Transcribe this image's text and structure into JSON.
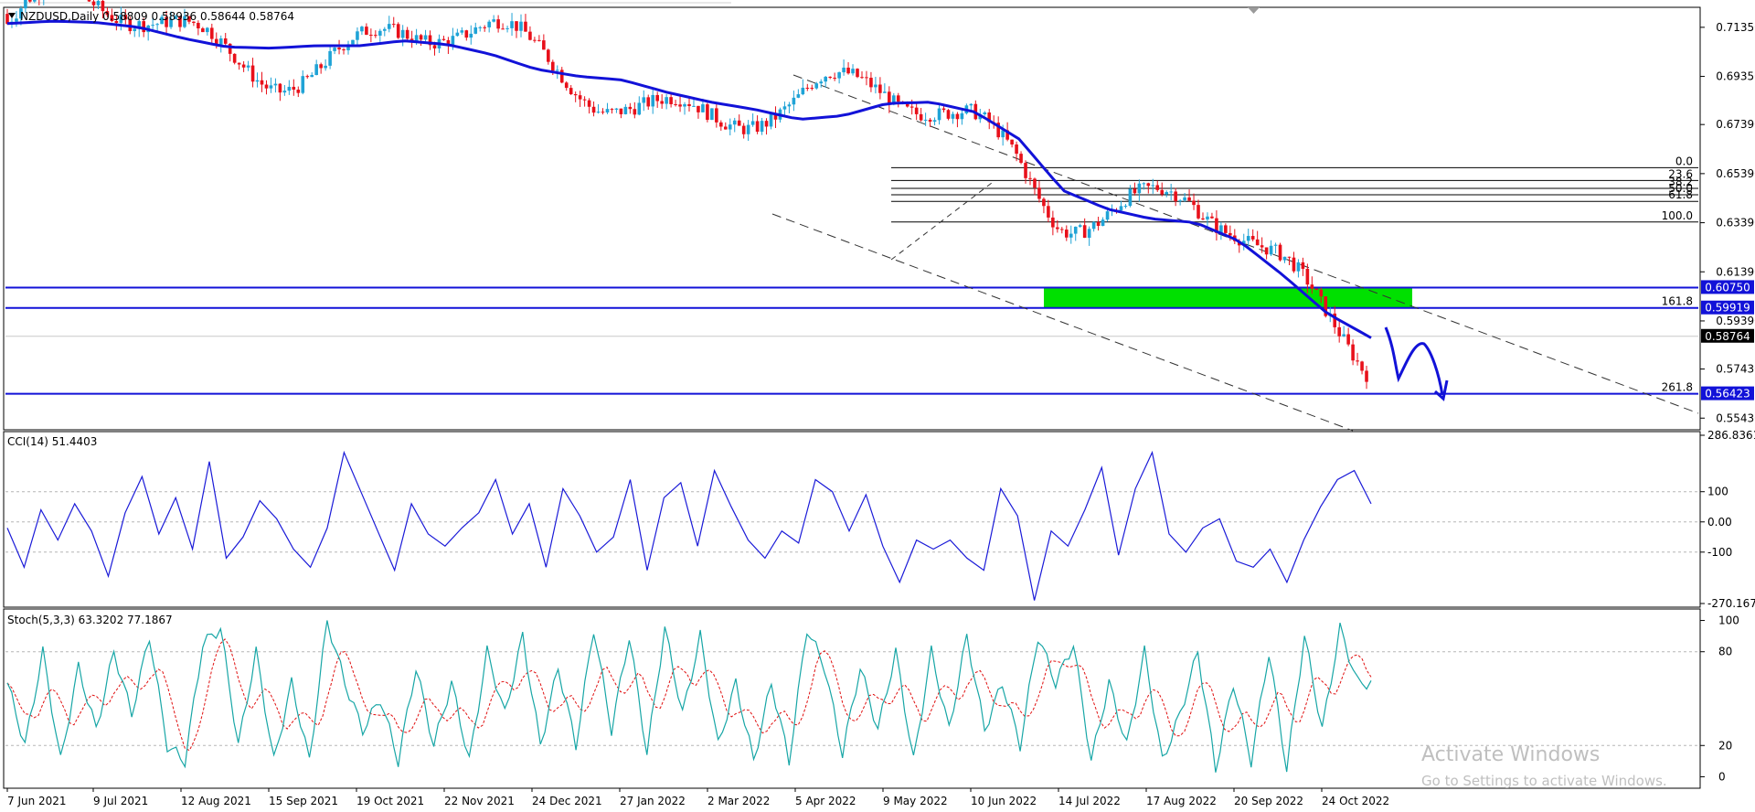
{
  "symbol_header": "NZDUSD,Daily  0.58809 0.58936 0.58644 0.58764",
  "dropdown_icon": "triangle-down-icon",
  "watermark": {
    "title": "Activate Windows",
    "subtitle": "Go to Settings to activate Windows."
  },
  "colors": {
    "bull": "#1fa3d6",
    "bear": "#e8101a",
    "ma": "#1212d8",
    "fib_zone": "#00e000",
    "level": "#1212d8",
    "cci": "#1a1ad8",
    "stoch_main": "#17a6a6",
    "stoch_signal": "#e01010"
  },
  "chart_data": [
    {
      "type": "candlestick",
      "name": "price-chart",
      "title": "NZDUSD,Daily",
      "ohlc_last": {
        "open": 0.58809,
        "high": 0.58936,
        "low": 0.58644,
        "close": 0.58764
      },
      "ylim": [
        0.5503,
        0.7209
      ],
      "y_ticks": [
        "0.71350",
        "0.69350",
        "0.67390",
        "0.65390",
        "0.63390",
        "0.61390",
        "0.59390",
        "0.57430",
        "0.55430"
      ],
      "x_ticks": [
        "7 Jun 2021",
        "9 Jul 2021",
        "12 Aug 2021",
        "15 Sep 2021",
        "19 Oct 2021",
        "22 Nov 2021",
        "24 Dec 2021",
        "27 Jan 2022",
        "2 Mar 2022",
        "5 Apr 2022",
        "9 May 2022",
        "10 Jun 2022",
        "14 Jul 2022",
        "17 Aug 2022",
        "20 Sep 2022",
        "24 Oct 2022"
      ],
      "price_levels": [
        {
          "label": "0.60750",
          "value": 0.6075
        },
        {
          "label": "0.59919",
          "value": 0.59919
        },
        {
          "label": "0.56423",
          "value": 0.56423
        }
      ],
      "current_price": {
        "label": "0.58764",
        "value": 0.58764
      },
      "fibonacci": [
        {
          "label": "0.0",
          "value": 0.6563
        },
        {
          "label": "23.6",
          "value": 0.6511
        },
        {
          "label": "38.2",
          "value": 0.6479
        },
        {
          "label": "50.0",
          "value": 0.6453
        },
        {
          "label": "61.8",
          "value": 0.6426
        },
        {
          "label": "100.0",
          "value": 0.6342
        },
        {
          "label": "161.8",
          "value": 0.5992
        },
        {
          "label": "261.8",
          "value": 0.5642
        }
      ],
      "ma_series": [
        0.715,
        0.716,
        0.7155,
        0.7135,
        0.709,
        0.7055,
        0.705,
        0.706,
        0.706,
        0.708,
        0.7065,
        0.7025,
        0.6965,
        0.6935,
        0.692,
        0.687,
        0.683,
        0.68,
        0.676,
        0.6775,
        0.6825,
        0.683,
        0.679,
        0.668,
        0.647,
        0.6395,
        0.6355,
        0.634,
        0.6265,
        0.6125,
        0.597,
        0.587
      ]
    },
    {
      "type": "line",
      "name": "cci",
      "title": "CCI(14) 51.4403",
      "ylim": [
        -270.1672,
        286.8361
      ],
      "y_ticks": [
        "286.8361",
        "100",
        "0.00",
        "-100",
        "-270.1672"
      ],
      "series": [
        {
          "values": [
            -20,
            -150,
            40,
            -60,
            60,
            -30,
            -180,
            30,
            150,
            -40,
            80,
            -90,
            200,
            -120,
            -50,
            70,
            10,
            -90,
            -150,
            -20,
            230,
            100,
            -30,
            -160,
            60,
            -40,
            -80,
            -20,
            30,
            140,
            -40,
            60,
            -150,
            110,
            20,
            -100,
            -50,
            140,
            -160,
            80,
            130,
            -80,
            170,
            50,
            -60,
            -120,
            -30,
            -70,
            140,
            100,
            -30,
            90,
            -80,
            -200,
            -60,
            -90,
            -60,
            -120,
            -160,
            110,
            20,
            -260,
            -30,
            -80,
            40,
            180,
            -110,
            110,
            230,
            -40,
            -100,
            -20,
            10,
            -130,
            -150,
            -90,
            -200,
            -60,
            50,
            140,
            170,
            60
          ]
        }
      ]
    },
    {
      "type": "line",
      "name": "stochastic",
      "title": "Stoch(5,3,3) 63.3202 77.1867",
      "ylim": [
        -5,
        105
      ],
      "y_ticks": [
        "100",
        "80",
        "20",
        "0"
      ],
      "series": [
        {
          "name": "main",
          "values": [
            60,
            20,
            80,
            10,
            70,
            30,
            80,
            40,
            90,
            20,
            10,
            85,
            95,
            20,
            80,
            10,
            60,
            10,
            100,
            60,
            30,
            50,
            10,
            70,
            20,
            60,
            10,
            80,
            40,
            90,
            20,
            70,
            20,
            95,
            30,
            90,
            15,
            95,
            40,
            90,
            20,
            60,
            10,
            60,
            10,
            95,
            70,
            15,
            70,
            30,
            80,
            10,
            80,
            30,
            90,
            30,
            60,
            20,
            90,
            60,
            85,
            10,
            60,
            20,
            80,
            10,
            40,
            80,
            5,
            60,
            10,
            80,
            5,
            90,
            30,
            95,
            60
          ]
        }
      ]
    }
  ]
}
